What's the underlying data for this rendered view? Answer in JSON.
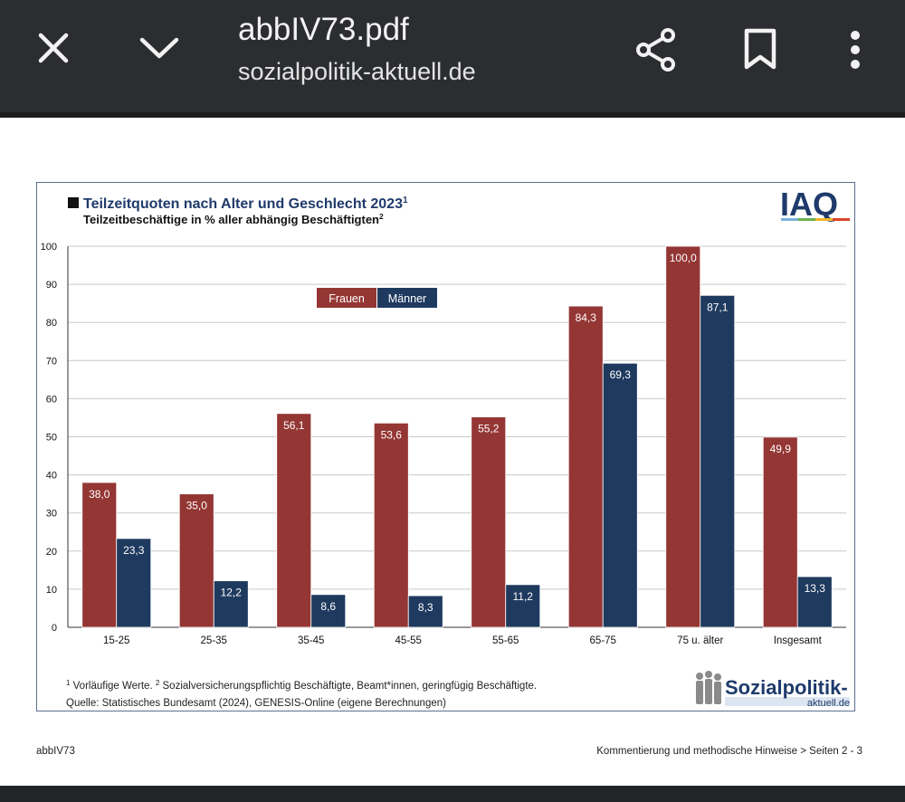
{
  "toolbar": {
    "file_name": "abbIV73.pdf",
    "site": "sozialpolitik-aktuell.de",
    "icons": [
      "close-icon",
      "chevron-down-icon",
      "share-icon",
      "bookmark-icon",
      "more-vert-icon"
    ]
  },
  "figure": {
    "title": "Teilzeitquoten nach Alter und Geschlecht 2023",
    "title_sup": "1",
    "subtitle": "Teilzeitbeschäftige in % aller abhängig Beschäftigten",
    "subtitle_sup": "2",
    "logo_text": "IAQ",
    "footnote_sup1": "1",
    "footnote_text1": " Vorläufige Werte. ",
    "footnote_sup2": "2",
    "footnote_text2": " Sozialversicherungspflichtig Beschäftigte, Beamt*innen, geringfügig Beschäftigte.",
    "source": "Quelle: Statistisches Bundesamt (2024), GENESIS-Online (eigene Berechnungen)",
    "brand_line1": "Sozialpolitik-",
    "brand_line2": "aktuell.de"
  },
  "page_footer": {
    "left": "abbIV73",
    "right": "Kommentierung und methodische Hinweise > Seiten 2 - 3"
  },
  "chart_data": {
    "type": "bar",
    "title": "Teilzeitquoten nach Alter und Geschlecht 2023",
    "ylabel": "Teilzeitbeschäftige in % aller abhängig Beschäftigten",
    "xlabel": "",
    "ylim": [
      0,
      100
    ],
    "yticks": [
      0,
      10,
      20,
      30,
      40,
      50,
      60,
      70,
      80,
      90,
      100
    ],
    "grid": true,
    "legend": "top-center",
    "categories": [
      "15-25",
      "25-35",
      "35-45",
      "45-55",
      "55-65",
      "65-75",
      "75 u. älter",
      "Insgesamt"
    ],
    "series": [
      {
        "name": "Frauen",
        "color": "#943634",
        "values": [
          38.0,
          35.0,
          56.1,
          53.6,
          55.2,
          84.3,
          100.0,
          49.9
        ],
        "labels": [
          "38,0",
          "35,0",
          "56,1",
          "53,6",
          "55,2",
          "84,3",
          "100,0",
          "49,9"
        ]
      },
      {
        "name": "Männer",
        "color": "#1f3a5f",
        "values": [
          23.3,
          12.2,
          8.6,
          8.3,
          11.2,
          69.3,
          87.1,
          13.3
        ],
        "labels": [
          "23,3",
          "12,2",
          "8,6",
          "8,3",
          "11,2",
          "69,3",
          "87,1",
          "13,3"
        ]
      }
    ]
  }
}
